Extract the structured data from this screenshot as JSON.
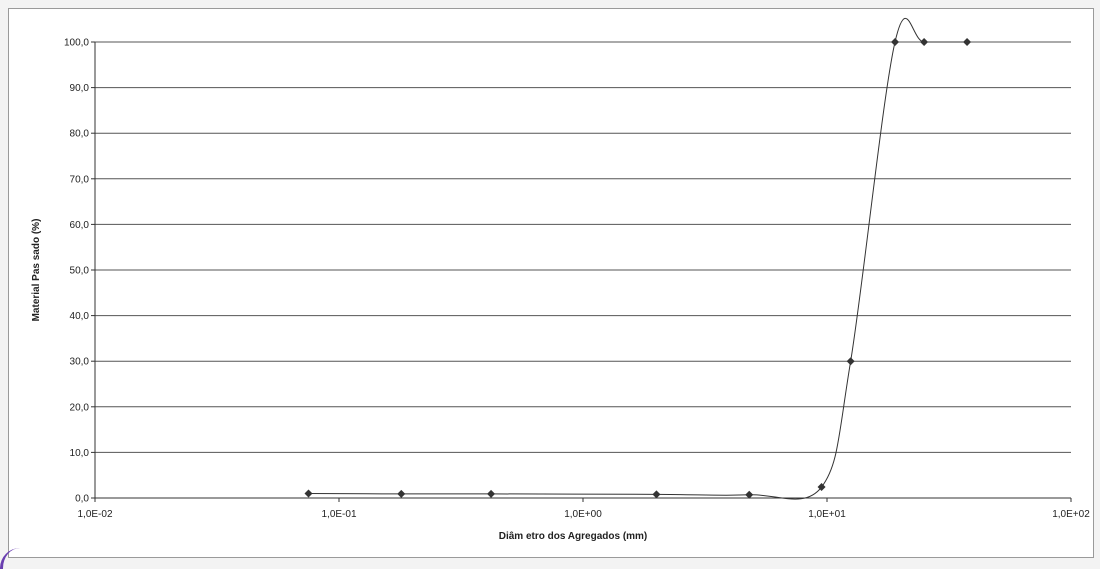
{
  "chart_data": {
    "type": "scatter",
    "title": "",
    "xlabel": "Diâm etro dos Agregados (mm)",
    "ylabel": "Material Pas sado (%)",
    "xscale": "log",
    "xlim": [
      0.01,
      100
    ],
    "ylim": [
      0,
      100
    ],
    "xticks": [
      "1,0E-02",
      "1,0E-01",
      "1,0E+00",
      "1,0E+01",
      "1,0E+02"
    ],
    "yticks": [
      "0,0",
      "10,0",
      "20,0",
      "30,0",
      "40,0",
      "50,0",
      "60,0",
      "70,0",
      "80,0",
      "90,0",
      "100,0"
    ],
    "grid": "horizontal",
    "legend": "none",
    "series": [
      {
        "x": [
          0.075,
          0.18,
          0.42,
          2.0,
          4.8,
          9.5,
          12.5,
          19.0,
          25.0,
          37.5
        ],
        "y": [
          1.0,
          0.9,
          0.9,
          0.8,
          0.7,
          2.4,
          30.0,
          100.0,
          100.0,
          100.0
        ],
        "color": "#333333",
        "marker": "diamond",
        "line": "smoothed"
      }
    ]
  }
}
